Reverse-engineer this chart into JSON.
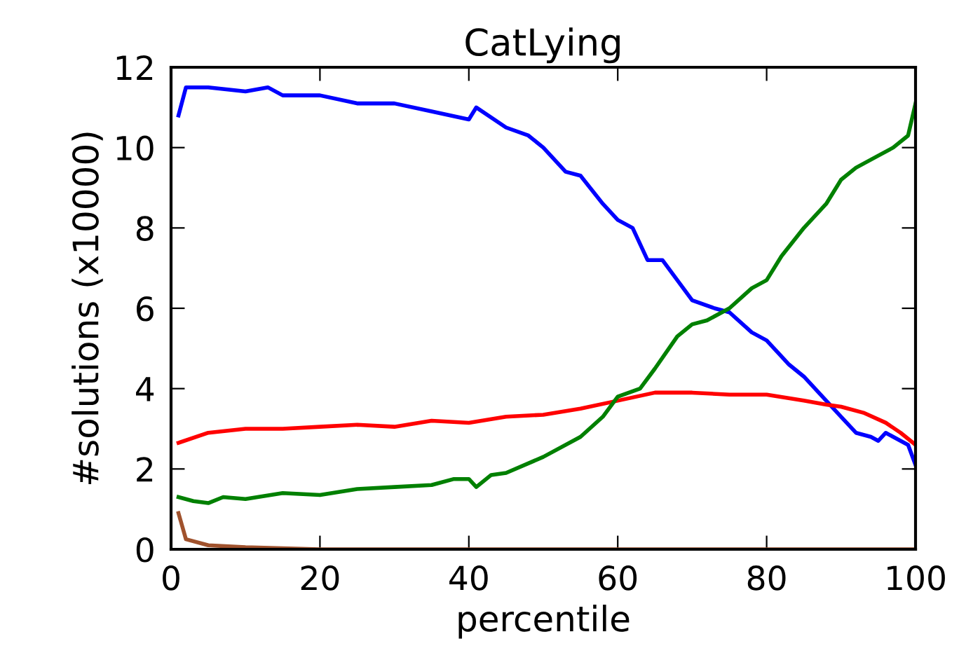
{
  "chart_data": {
    "type": "line",
    "title": "CatLying",
    "xlabel": "percentile",
    "ylabel": "#solutions (x10000)",
    "xlim": [
      0,
      100
    ],
    "ylim": [
      0,
      12
    ],
    "xticks": [
      0,
      20,
      40,
      60,
      80,
      100
    ],
    "yticks": [
      0,
      2,
      4,
      6,
      8,
      10,
      12
    ],
    "grid": false,
    "legend": false,
    "series": [
      {
        "color": "#0000ff",
        "x": [
          1,
          2,
          5,
          10,
          13,
          15,
          20,
          25,
          30,
          35,
          40,
          41,
          45,
          48,
          50,
          53,
          55,
          58,
          60,
          62,
          64,
          66,
          68,
          70,
          73,
          75,
          78,
          80,
          83,
          85,
          88,
          90,
          92,
          94,
          95,
          96,
          97,
          99,
          100
        ],
        "values": [
          10.8,
          11.5,
          11.5,
          11.4,
          11.5,
          11.3,
          11.3,
          11.1,
          11.1,
          10.9,
          10.7,
          11.0,
          10.5,
          10.3,
          10.0,
          9.4,
          9.3,
          8.6,
          8.2,
          8.0,
          7.2,
          7.2,
          6.7,
          6.2,
          6.0,
          5.9,
          5.4,
          5.2,
          4.6,
          4.3,
          3.7,
          3.3,
          2.9,
          2.8,
          2.7,
          2.9,
          2.8,
          2.6,
          2.1
        ]
      },
      {
        "color": "#ff0000",
        "x": [
          1,
          5,
          10,
          15,
          20,
          25,
          30,
          35,
          40,
          45,
          50,
          55,
          60,
          65,
          70,
          75,
          80,
          85,
          88,
          90,
          93,
          96,
          98,
          100
        ],
        "values": [
          2.65,
          2.9,
          3.0,
          3.0,
          3.05,
          3.1,
          3.05,
          3.2,
          3.15,
          3.3,
          3.35,
          3.5,
          3.7,
          3.9,
          3.9,
          3.85,
          3.85,
          3.7,
          3.6,
          3.55,
          3.4,
          3.15,
          2.9,
          2.6
        ]
      },
      {
        "color": "#008000",
        "x": [
          1,
          3,
          5,
          7,
          10,
          15,
          20,
          25,
          30,
          35,
          38,
          40,
          41,
          43,
          45,
          50,
          55,
          58,
          60,
          63,
          65,
          68,
          70,
          72,
          75,
          78,
          80,
          82,
          85,
          88,
          90,
          92,
          95,
          97,
          99,
          100
        ],
        "values": [
          1.3,
          1.2,
          1.15,
          1.3,
          1.25,
          1.4,
          1.35,
          1.5,
          1.55,
          1.6,
          1.75,
          1.75,
          1.55,
          1.85,
          1.9,
          2.3,
          2.8,
          3.3,
          3.8,
          4.0,
          4.5,
          5.3,
          5.6,
          5.7,
          6.0,
          6.5,
          6.7,
          7.3,
          8.0,
          8.6,
          9.2,
          9.5,
          9.8,
          10.0,
          10.3,
          11.1
        ]
      },
      {
        "color": "#a0522d",
        "x": [
          1,
          2,
          5,
          10,
          20,
          100
        ],
        "values": [
          0.9,
          0.25,
          0.1,
          0.05,
          0.0,
          0.0
        ]
      }
    ]
  }
}
